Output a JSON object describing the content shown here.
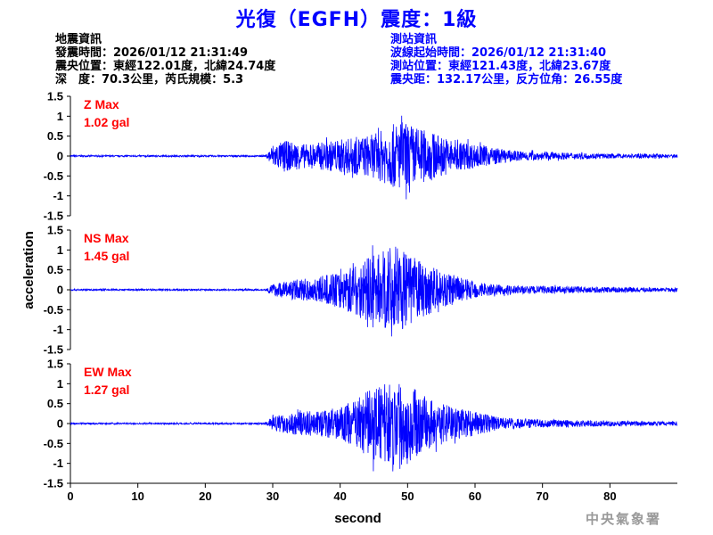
{
  "title": "光復（EGFH）震度：1級",
  "info_left": [
    "地震資訊",
    "發震時間：2026/01/12 21:31:49",
    "震央位置：東經122.01度，北緯24.74度",
    "深　度：70.3公里，芮氏規模：5.3"
  ],
  "info_right": [
    "測站資訊",
    "波線起始時間：2026/01/12 21:31:40",
    "測站位置：東經121.43度，北緯23.67度",
    "震央距：132.17公里，反方位角：26.55度"
  ],
  "agency": "中央氣象署",
  "colors": {
    "title": "#0000ff",
    "trace": "#0000ff",
    "max_label": "#ff0000",
    "info_right": "#0000ff",
    "agency": "#9a9a9a"
  },
  "chart_data": {
    "type": "line",
    "xlabel": "second",
    "ylabel": "acceleration",
    "xlim": [
      0,
      90
    ],
    "ylim": [
      -1.5,
      1.5
    ],
    "xticks": [
      0,
      10,
      20,
      30,
      40,
      50,
      60,
      70,
      80
    ],
    "yticks": [
      1.5,
      1,
      0.5,
      0,
      -0.5,
      -1,
      -1.5
    ],
    "ytick_labels": [
      "1.5",
      "1",
      "0.5",
      "0",
      "-0.5",
      "-1",
      "-1.5"
    ],
    "grid": false,
    "panels": [
      {
        "component": "Z",
        "max_label": "Z Max",
        "max_value": "1.02 gal",
        "envelope": [
          [
            0,
            0.02
          ],
          [
            29,
            0.02
          ],
          [
            30,
            0.3
          ],
          [
            32,
            0.38
          ],
          [
            35,
            0.3
          ],
          [
            40,
            0.42
          ],
          [
            45,
            0.55
          ],
          [
            49,
            0.9
          ],
          [
            52,
            0.7
          ],
          [
            56,
            0.45
          ],
          [
            60,
            0.3
          ],
          [
            65,
            0.15
          ],
          [
            70,
            0.1
          ],
          [
            80,
            0.06
          ],
          [
            90,
            0.05
          ]
        ]
      },
      {
        "component": "NS",
        "max_label": "NS Max",
        "max_value": "1.45 gal",
        "envelope": [
          [
            0,
            0.02
          ],
          [
            29,
            0.02
          ],
          [
            30,
            0.15
          ],
          [
            33,
            0.25
          ],
          [
            36,
            0.3
          ],
          [
            40,
            0.45
          ],
          [
            44,
            0.8
          ],
          [
            48,
            1.1
          ],
          [
            50,
            0.9
          ],
          [
            54,
            0.55
          ],
          [
            58,
            0.3
          ],
          [
            62,
            0.15
          ],
          [
            66,
            0.1
          ],
          [
            70,
            0.1
          ],
          [
            80,
            0.07
          ],
          [
            90,
            0.05
          ]
        ]
      },
      {
        "component": "EW",
        "max_label": "EW Max",
        "max_value": "1.27 gal",
        "envelope": [
          [
            0,
            0.02
          ],
          [
            29,
            0.02
          ],
          [
            30,
            0.18
          ],
          [
            33,
            0.28
          ],
          [
            37,
            0.33
          ],
          [
            40,
            0.4
          ],
          [
            45,
            0.9
          ],
          [
            49,
            1.15
          ],
          [
            52,
            0.75
          ],
          [
            56,
            0.45
          ],
          [
            60,
            0.3
          ],
          [
            64,
            0.15
          ],
          [
            70,
            0.1
          ],
          [
            80,
            0.07
          ],
          [
            90,
            0.05
          ]
        ]
      }
    ]
  }
}
